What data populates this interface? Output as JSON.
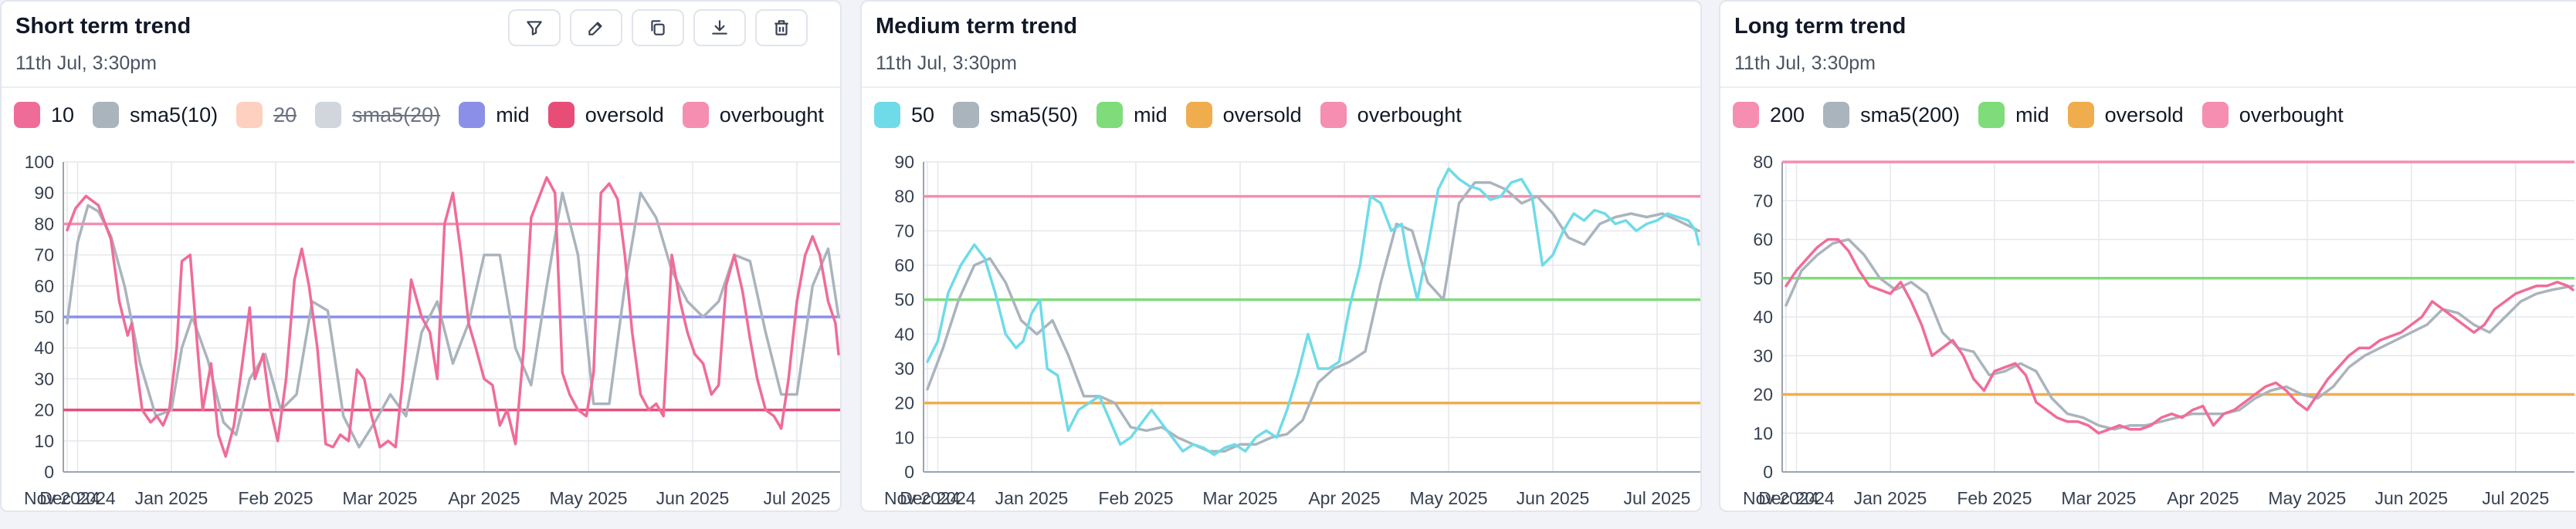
{
  "panels": [
    {
      "title": "Short term trend",
      "subtitle": "11th Jul, 3:30pm",
      "toolbar": [
        {
          "icon": "filter-icon"
        },
        {
          "icon": "edit-icon"
        },
        {
          "icon": "copy-icon"
        },
        {
          "icon": "download-icon"
        },
        {
          "icon": "trash-icon"
        }
      ]
    },
    {
      "title": "Medium term trend",
      "subtitle": "11th Jul, 3:30pm"
    },
    {
      "title": "Long term trend",
      "subtitle": "11th Jul, 3:30pm"
    }
  ],
  "chart_data": [
    {
      "type": "line",
      "ylim": [
        0,
        100
      ],
      "yticks": [
        0,
        10,
        20,
        30,
        40,
        50,
        60,
        70,
        80,
        90,
        100
      ],
      "x_tick_labels": [
        "Nov 2024",
        "Dec 2024",
        "Jan 2025",
        "Feb 2025",
        "Mar 2025",
        "Apr 2025",
        "May 2025",
        "Jun 2025",
        "Jul 2025"
      ],
      "x_tick_pos": [
        -0.05,
        0.1,
        1,
        2,
        3,
        4,
        5,
        6,
        7
      ],
      "xmax": 7.4,
      "legend": [
        {
          "label": "10",
          "color": "#f06c98",
          "visible": true
        },
        {
          "label": "sma5(10)",
          "color": "#aab4bd",
          "visible": true
        },
        {
          "label": "20",
          "color": "#fca98a",
          "visible": false
        },
        {
          "label": "sma5(20)",
          "color": "#aab4bd",
          "visible": false
        },
        {
          "label": "mid",
          "color": "#8b8fe8",
          "visible": true
        },
        {
          "label": "oversold",
          "color": "#e84d78",
          "visible": true
        },
        {
          "label": "overbought",
          "color": "#f58eb0",
          "visible": true
        }
      ],
      "hlines": [
        {
          "name": "mid",
          "value": 50,
          "color": "#8b8fe8"
        },
        {
          "name": "oversold",
          "value": 20,
          "color": "#e84d78"
        },
        {
          "name": "overbought",
          "value": 80,
          "color": "#f58eb0"
        }
      ],
      "series": [
        {
          "name": "10",
          "color": "#f06c98",
          "x": [
            0,
            0.08,
            0.18,
            0.3,
            0.42,
            0.5,
            0.58,
            0.62,
            0.66,
            0.72,
            0.8,
            0.86,
            0.92,
            0.98,
            1.05,
            1.1,
            1.18,
            1.25,
            1.3,
            1.38,
            1.45,
            1.52,
            1.6,
            1.68,
            1.75,
            1.8,
            1.88,
            1.95,
            2.02,
            2.1,
            2.18,
            2.25,
            2.32,
            2.4,
            2.48,
            2.55,
            2.62,
            2.7,
            2.78,
            2.85,
            2.92,
            3.0,
            3.08,
            3.15,
            3.22,
            3.3,
            3.4,
            3.48,
            3.55,
            3.62,
            3.7,
            3.78,
            3.85,
            3.92,
            4.0,
            4.08,
            4.15,
            4.22,
            4.3,
            4.38,
            4.45,
            4.52,
            4.6,
            4.68,
            4.75,
            4.82,
            4.9,
            4.98,
            5.05,
            5.12,
            5.2,
            5.28,
            5.35,
            5.42,
            5.5,
            5.58,
            5.65,
            5.72,
            5.8,
            5.88,
            5.95,
            6.02,
            6.1,
            6.18,
            6.25,
            6.32,
            6.4,
            6.48,
            6.55,
            6.62,
            6.7,
            6.78,
            6.85,
            6.92,
            7.0,
            7.08,
            7.15,
            7.22,
            7.3,
            7.37,
            7.4
          ],
          "y": [
            78,
            85,
            89,
            86,
            75,
            55,
            44,
            48,
            35,
            20,
            16,
            18,
            15,
            20,
            40,
            68,
            70,
            40,
            20,
            35,
            12,
            5,
            15,
            35,
            53,
            30,
            38,
            20,
            10,
            30,
            62,
            72,
            60,
            40,
            9,
            8,
            12,
            10,
            33,
            30,
            18,
            8,
            10,
            8,
            30,
            62,
            50,
            45,
            30,
            80,
            90,
            70,
            48,
            40,
            30,
            28,
            15,
            20,
            9,
            40,
            82,
            88,
            95,
            90,
            32,
            25,
            20,
            18,
            32,
            90,
            93,
            88,
            70,
            45,
            25,
            20,
            22,
            18,
            70,
            55,
            45,
            38,
            35,
            25,
            28,
            60,
            70,
            58,
            43,
            30,
            20,
            18,
            14,
            30,
            55,
            70,
            76,
            70,
            55,
            48,
            38
          ]
        },
        {
          "name": "sma5(10)",
          "color": "#aab4bd",
          "x": [
            0,
            0.1,
            0.2,
            0.3,
            0.42,
            0.55,
            0.7,
            0.85,
            1.0,
            1.1,
            1.2,
            1.35,
            1.5,
            1.62,
            1.75,
            1.9,
            2.05,
            2.2,
            2.35,
            2.5,
            2.65,
            2.8,
            2.95,
            3.1,
            3.25,
            3.4,
            3.55,
            3.7,
            3.85,
            4.0,
            4.15,
            4.3,
            4.45,
            4.6,
            4.75,
            4.9,
            5.05,
            5.2,
            5.35,
            5.5,
            5.65,
            5.8,
            5.95,
            6.1,
            6.25,
            6.4,
            6.55,
            6.7,
            6.85,
            7.0,
            7.15,
            7.3,
            7.4
          ],
          "y": [
            48,
            74,
            86,
            84,
            76,
            60,
            35,
            18,
            20,
            40,
            50,
            36,
            16,
            12,
            30,
            38,
            20,
            25,
            55,
            52,
            18,
            8,
            16,
            25,
            18,
            45,
            55,
            35,
            48,
            70,
            70,
            40,
            28,
            60,
            90,
            70,
            22,
            22,
            60,
            90,
            82,
            65,
            55,
            50,
            55,
            70,
            68,
            45,
            25,
            25,
            60,
            72,
            50
          ]
        }
      ]
    },
    {
      "type": "line",
      "ylim": [
        0,
        90
      ],
      "yticks": [
        0,
        10,
        20,
        30,
        40,
        50,
        60,
        70,
        80,
        90
      ],
      "x_tick_labels": [
        "Nov 2024",
        "Dec 2024",
        "Jan 2025",
        "Feb 2025",
        "Mar 2025",
        "Apr 2025",
        "May 2025",
        "Jun 2025",
        "Jul 2025"
      ],
      "x_tick_pos": [
        -0.05,
        0.1,
        1,
        2,
        3,
        4,
        5,
        6,
        7
      ],
      "xmax": 7.4,
      "legend": [
        {
          "label": "50",
          "color": "#6fdbe8",
          "visible": true
        },
        {
          "label": "sma5(50)",
          "color": "#aab4bd",
          "visible": true
        },
        {
          "label": "mid",
          "color": "#7fdc7a",
          "visible": true
        },
        {
          "label": "oversold",
          "color": "#f0ad4e",
          "visible": true
        },
        {
          "label": "overbought",
          "color": "#f58eb0",
          "visible": true
        }
      ],
      "hlines": [
        {
          "name": "mid",
          "value": 50,
          "color": "#7fdc7a"
        },
        {
          "name": "oversold",
          "value": 20,
          "color": "#f0ad4e"
        },
        {
          "name": "overbought",
          "value": 80,
          "color": "#f58eb0"
        }
      ],
      "series": [
        {
          "name": "50",
          "color": "#6fdbe8",
          "x": [
            0,
            0.1,
            0.2,
            0.32,
            0.45,
            0.55,
            0.65,
            0.75,
            0.85,
            0.92,
            1.0,
            1.08,
            1.15,
            1.25,
            1.35,
            1.45,
            1.55,
            1.65,
            1.75,
            1.85,
            1.95,
            2.05,
            2.15,
            2.25,
            2.35,
            2.45,
            2.55,
            2.65,
            2.75,
            2.85,
            2.95,
            3.05,
            3.15,
            3.25,
            3.35,
            3.45,
            3.55,
            3.65,
            3.75,
            3.85,
            3.95,
            4.05,
            4.15,
            4.25,
            4.35,
            4.45,
            4.55,
            4.62,
            4.7,
            4.8,
            4.9,
            5.0,
            5.1,
            5.2,
            5.3,
            5.4,
            5.5,
            5.6,
            5.7,
            5.8,
            5.9,
            6.0,
            6.1,
            6.2,
            6.3,
            6.4,
            6.5,
            6.6,
            6.7,
            6.8,
            6.9,
            7.0,
            7.1,
            7.2,
            7.3,
            7.37,
            7.4
          ],
          "y": [
            32,
            38,
            52,
            60,
            66,
            62,
            52,
            40,
            36,
            38,
            46,
            50,
            30,
            28,
            12,
            18,
            20,
            22,
            15,
            8,
            10,
            14,
            18,
            14,
            10,
            6,
            8,
            7,
            5,
            7,
            8,
            6,
            10,
            12,
            10,
            18,
            28,
            40,
            30,
            30,
            32,
            48,
            60,
            80,
            78,
            70,
            72,
            60,
            50,
            65,
            82,
            88,
            85,
            83,
            82,
            79,
            80,
            84,
            85,
            80,
            60,
            63,
            70,
            75,
            73,
            76,
            75,
            72,
            73,
            70,
            72,
            73,
            75,
            74,
            73,
            70,
            66
          ]
        },
        {
          "name": "sma5(50)",
          "color": "#aab4bd",
          "x": [
            0,
            0.15,
            0.3,
            0.45,
            0.6,
            0.75,
            0.9,
            1.05,
            1.2,
            1.35,
            1.5,
            1.65,
            1.8,
            1.95,
            2.1,
            2.25,
            2.4,
            2.55,
            2.7,
            2.85,
            3.0,
            3.15,
            3.3,
            3.45,
            3.6,
            3.75,
            3.9,
            4.05,
            4.2,
            4.35,
            4.5,
            4.65,
            4.8,
            4.95,
            5.1,
            5.25,
            5.4,
            5.55,
            5.7,
            5.85,
            6.0,
            6.15,
            6.3,
            6.45,
            6.6,
            6.75,
            6.9,
            7.05,
            7.2,
            7.4
          ],
          "y": [
            24,
            36,
            50,
            60,
            62,
            55,
            44,
            40,
            44,
            34,
            22,
            22,
            20,
            13,
            12,
            13,
            10,
            8,
            6,
            6,
            8,
            8,
            10,
            11,
            15,
            26,
            30,
            32,
            35,
            55,
            72,
            70,
            55,
            50,
            78,
            84,
            84,
            82,
            78,
            80,
            75,
            68,
            66,
            72,
            74,
            75,
            74,
            75,
            73,
            70
          ]
        }
      ]
    },
    {
      "type": "line",
      "ylim": [
        0,
        80
      ],
      "yticks": [
        0,
        10,
        20,
        30,
        40,
        50,
        60,
        70,
        80
      ],
      "x_tick_labels": [
        "Nov 2024",
        "Dec 2024",
        "Jan 2025",
        "Feb 2025",
        "Mar 2025",
        "Apr 2025",
        "May 2025",
        "Jun 2025",
        "Jul 2025"
      ],
      "x_tick_pos": [
        -0.05,
        0.1,
        1,
        2,
        3,
        4,
        5,
        6,
        7
      ],
      "xmax": 7.55,
      "legend": [
        {
          "label": "200",
          "color": "#f58eb0",
          "visible": true
        },
        {
          "label": "sma5(200)",
          "color": "#aab4bd",
          "visible": true
        },
        {
          "label": "mid",
          "color": "#7fdc7a",
          "visible": true
        },
        {
          "label": "oversold",
          "color": "#f0ad4e",
          "visible": true
        },
        {
          "label": "overbought",
          "color": "#f58eb0",
          "visible": true
        }
      ],
      "hlines": [
        {
          "name": "mid",
          "value": 50,
          "color": "#7fdc7a"
        },
        {
          "name": "oversold",
          "value": 20,
          "color": "#f0ad4e"
        },
        {
          "name": "overbought",
          "value": 80,
          "color": "#f58eb0"
        }
      ],
      "series": [
        {
          "name": "200",
          "color": "#f06c98",
          "x": [
            0,
            0.1,
            0.2,
            0.3,
            0.4,
            0.5,
            0.6,
            0.7,
            0.8,
            0.9,
            1.0,
            1.1,
            1.2,
            1.3,
            1.4,
            1.5,
            1.6,
            1.7,
            1.8,
            1.9,
            2.0,
            2.1,
            2.2,
            2.3,
            2.4,
            2.5,
            2.6,
            2.7,
            2.8,
            2.9,
            3.0,
            3.1,
            3.2,
            3.3,
            3.4,
            3.5,
            3.6,
            3.7,
            3.8,
            3.9,
            4.0,
            4.1,
            4.2,
            4.3,
            4.4,
            4.5,
            4.6,
            4.7,
            4.8,
            4.9,
            5.0,
            5.1,
            5.2,
            5.3,
            5.4,
            5.5,
            5.6,
            5.7,
            5.8,
            5.9,
            6.0,
            6.1,
            6.2,
            6.3,
            6.4,
            6.5,
            6.6,
            6.7,
            6.8,
            6.9,
            7.0,
            7.1,
            7.2,
            7.3,
            7.4,
            7.5,
            7.55
          ],
          "y": [
            48,
            52,
            55,
            58,
            60,
            60,
            57,
            52,
            48,
            47,
            46,
            49,
            44,
            38,
            30,
            32,
            34,
            30,
            24,
            21,
            26,
            27,
            28,
            25,
            18,
            16,
            14,
            13,
            13,
            12,
            10,
            11,
            12,
            11,
            11,
            12,
            14,
            15,
            14,
            16,
            17,
            12,
            15,
            16,
            18,
            20,
            22,
            23,
            21,
            18,
            16,
            20,
            24,
            27,
            30,
            32,
            32,
            34,
            35,
            36,
            38,
            40,
            44,
            42,
            40,
            38,
            36,
            38,
            42,
            44,
            46,
            47,
            48,
            48,
            49,
            48,
            47
          ]
        },
        {
          "name": "sma5(200)",
          "color": "#aab4bd",
          "x": [
            0,
            0.15,
            0.3,
            0.45,
            0.6,
            0.75,
            0.9,
            1.05,
            1.2,
            1.35,
            1.5,
            1.65,
            1.8,
            1.95,
            2.1,
            2.25,
            2.4,
            2.55,
            2.7,
            2.85,
            3.0,
            3.15,
            3.3,
            3.45,
            3.6,
            3.75,
            3.9,
            4.05,
            4.2,
            4.35,
            4.5,
            4.65,
            4.8,
            4.95,
            5.1,
            5.25,
            5.4,
            5.55,
            5.7,
            5.85,
            6.0,
            6.15,
            6.3,
            6.45,
            6.6,
            6.75,
            6.9,
            7.05,
            7.2,
            7.35,
            7.55
          ],
          "y": [
            43,
            52,
            56,
            59,
            60,
            56,
            50,
            47,
            49,
            46,
            36,
            32,
            31,
            25,
            26,
            28,
            26,
            19,
            15,
            14,
            12,
            11,
            12,
            12,
            13,
            14,
            15,
            15,
            15,
            16,
            19,
            21,
            22,
            20,
            19,
            22,
            27,
            30,
            32,
            34,
            36,
            38,
            42,
            41,
            38,
            36,
            40,
            44,
            46,
            47,
            48
          ]
        }
      ]
    }
  ]
}
